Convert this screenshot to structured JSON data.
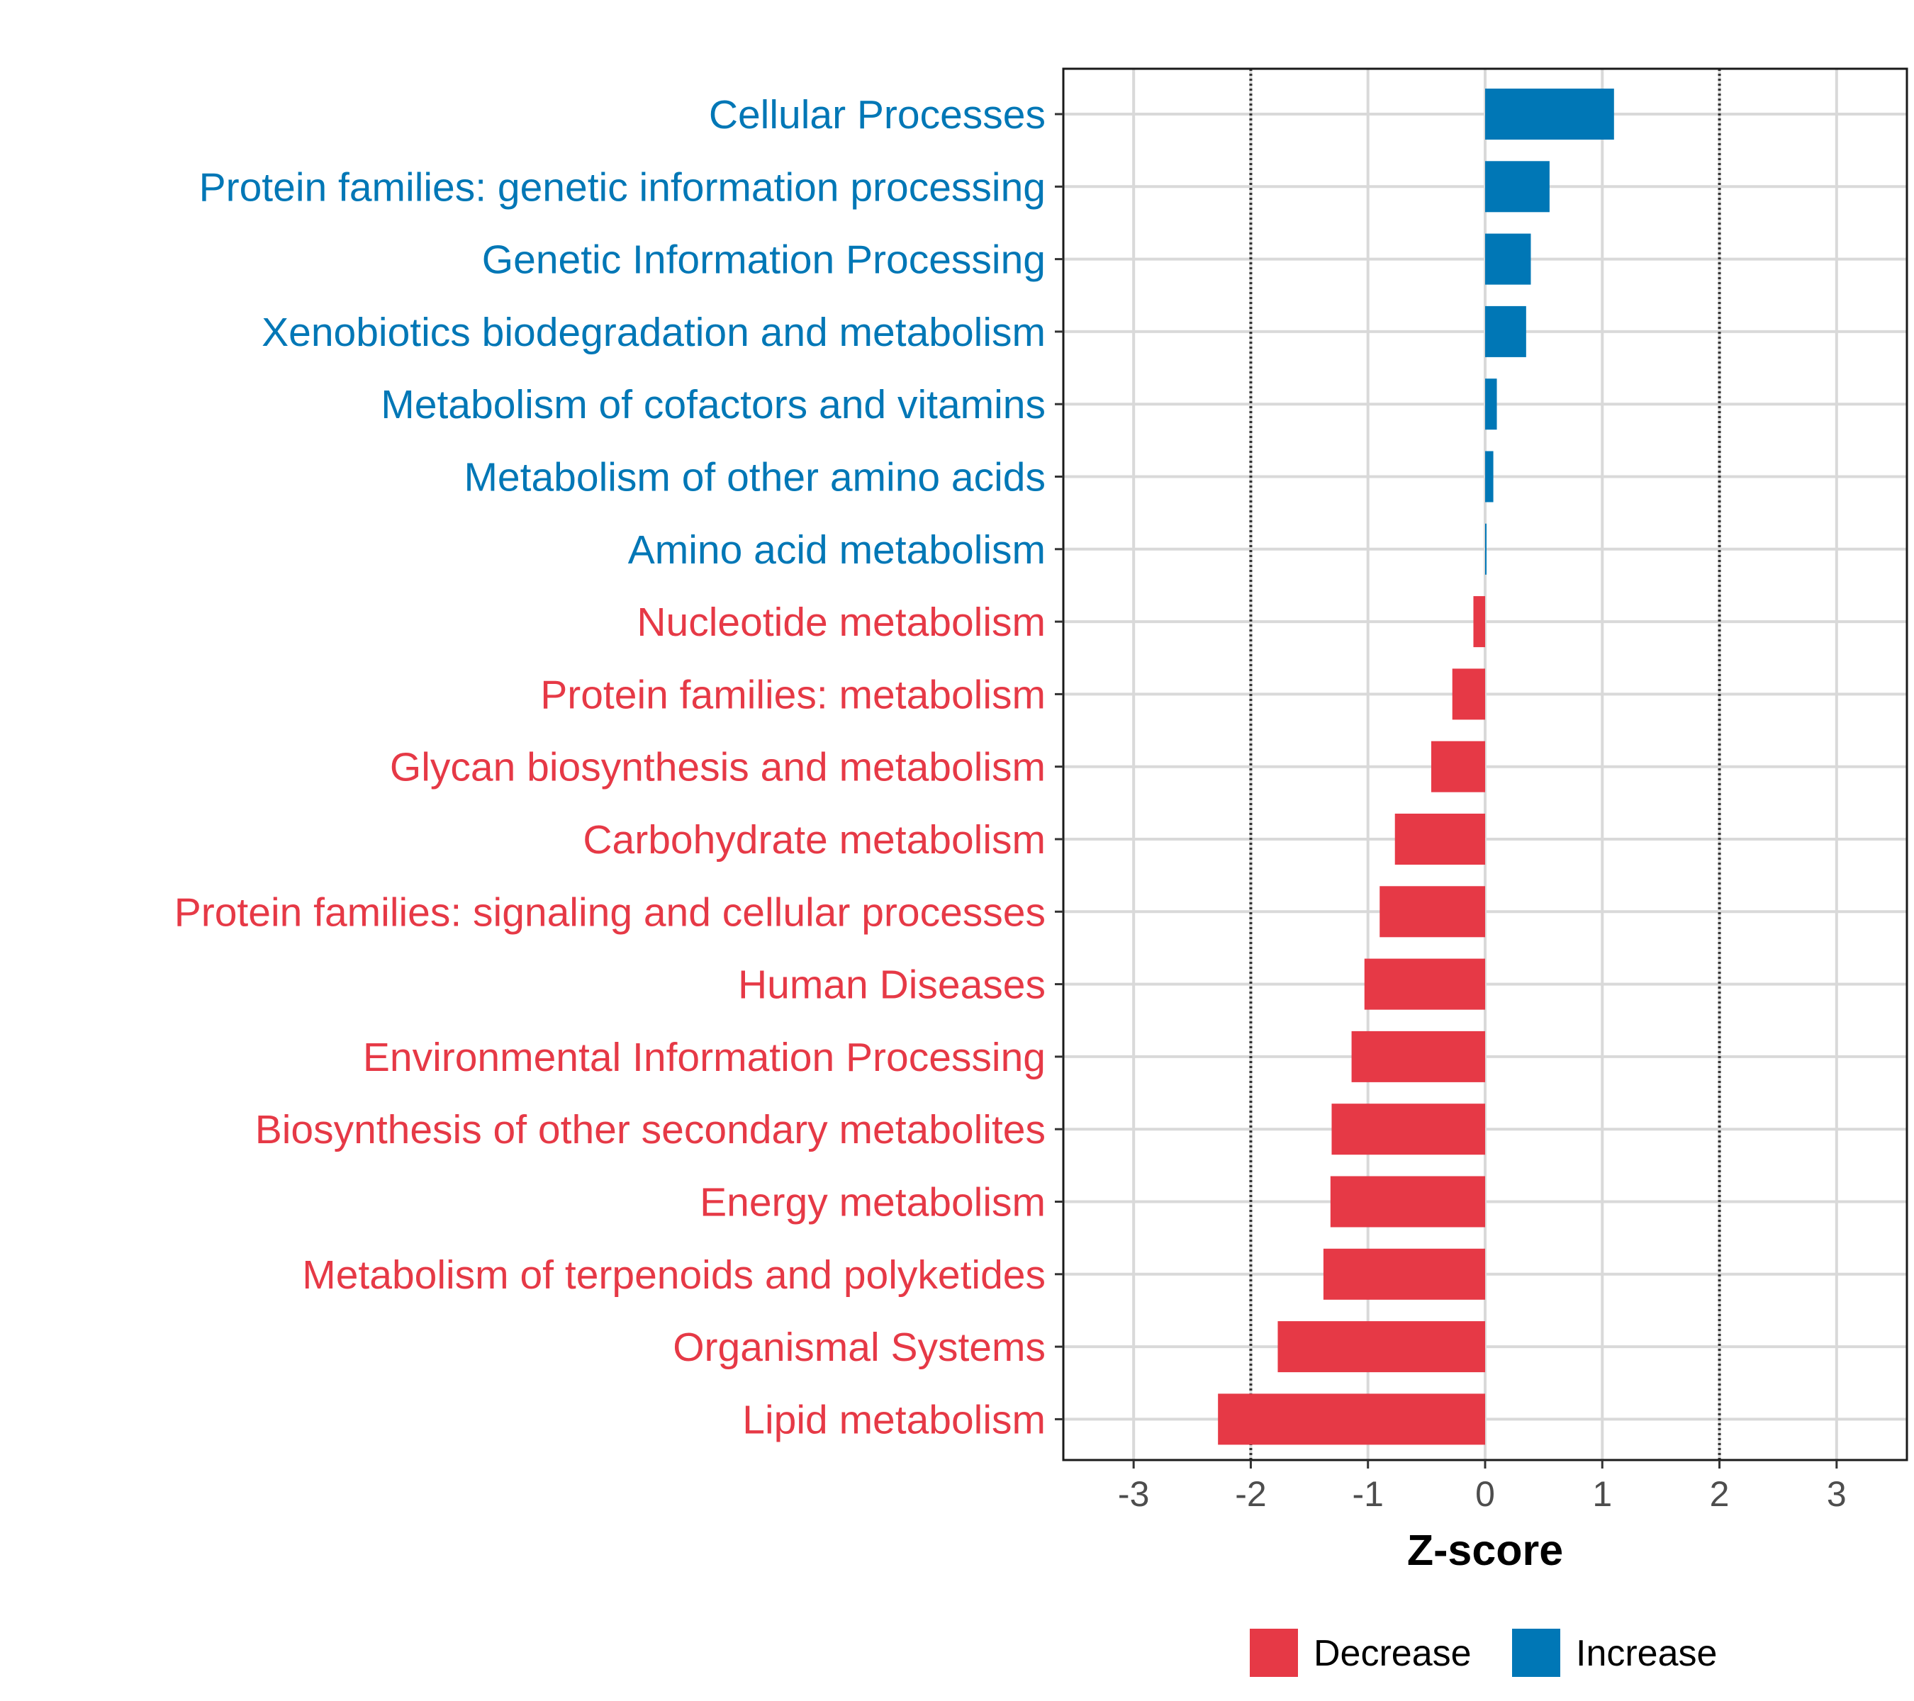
{
  "chart_data": {
    "type": "bar",
    "orientation": "horizontal",
    "title": "",
    "xlabel": "Z-score",
    "ylabel": "",
    "xlim": [
      -3.6,
      3.6
    ],
    "xticks": [
      -3,
      -2,
      -1,
      0,
      1,
      2,
      3
    ],
    "xtick_labels": [
      "-3",
      "-2",
      "-1",
      "0",
      "1",
      "2",
      "3"
    ],
    "reference_lines": [
      -2,
      2
    ],
    "grid": true,
    "legend_position": "bottom",
    "categories": [
      "Cellular Processes",
      "Protein families: genetic information processing",
      "Genetic Information Processing",
      "Xenobiotics biodegradation and metabolism",
      "Metabolism of cofactors and vitamins",
      "Metabolism of other amino acids",
      "Amino acid metabolism",
      "Nucleotide metabolism",
      "Protein families: metabolism",
      "Glycan biosynthesis and metabolism",
      "Carbohydrate metabolism",
      "Protein families: signaling and cellular processes",
      "Human Diseases",
      "Environmental Information Processing",
      "Biosynthesis of other secondary metabolites",
      "Energy metabolism",
      "Metabolism of terpenoids and polyketides",
      "Organismal Systems",
      "Lipid metabolism"
    ],
    "values": [
      1.1,
      0.55,
      0.39,
      0.35,
      0.1,
      0.07,
      0.01,
      -0.1,
      -0.28,
      -0.46,
      -0.77,
      -0.9,
      -1.03,
      -1.14,
      -1.31,
      -1.32,
      -1.38,
      -1.77,
      -2.28
    ],
    "series": [
      {
        "name": "Decrease",
        "color": "#e63946"
      },
      {
        "name": "Increase",
        "color": "#0077b6"
      }
    ]
  }
}
